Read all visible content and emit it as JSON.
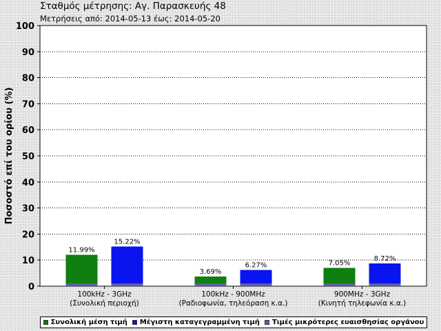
{
  "page": {
    "title": "Σταθμός μέτρησης: Αγ. Παρασκευής 48",
    "subtitle": "Μετρήσεις από: 2014-05-13 έως: 2014-05-20"
  },
  "colors": {
    "mean": "#0f7f0f",
    "max": "#0a14ee",
    "below_sensitivity": "#5a5fa8"
  },
  "chart_data": {
    "type": "bar",
    "ylabel": "Ποσοστό επί του ορίου (%)",
    "ylim": [
      0,
      100
    ],
    "yticks": [
      0,
      10,
      20,
      30,
      40,
      50,
      60,
      70,
      80,
      90,
      100
    ],
    "grid": true,
    "legend_position": "bottom",
    "categories": [
      {
        "line1": "100kHz - 3GHz",
        "line2": "(Συνολική περιοχή)"
      },
      {
        "line1": "100kHz - 900MHz",
        "line2": "(Ραδιοφωνία, τηλεόραση κ.α.)"
      },
      {
        "line1": "900MHz - 3GHz",
        "line2": "(Κινητή τηλεφωνία κ.α.)"
      }
    ],
    "series": [
      {
        "name": "Συνολική μέση τιμή",
        "values": [
          11.99,
          3.69,
          7.05
        ],
        "labels": [
          "11.99%",
          "3.69%",
          "7.05%"
        ]
      },
      {
        "name": "Μέγιστη καταγεγραμμένη τιμή",
        "values": [
          15.22,
          6.27,
          8.72
        ],
        "labels": [
          "15.22%",
          "6.27%",
          "8.72%"
        ]
      },
      {
        "name": "Τιμές μικρότερες ευαισθησίας οργάνου",
        "values": [
          1,
          1,
          1
        ]
      }
    ]
  }
}
